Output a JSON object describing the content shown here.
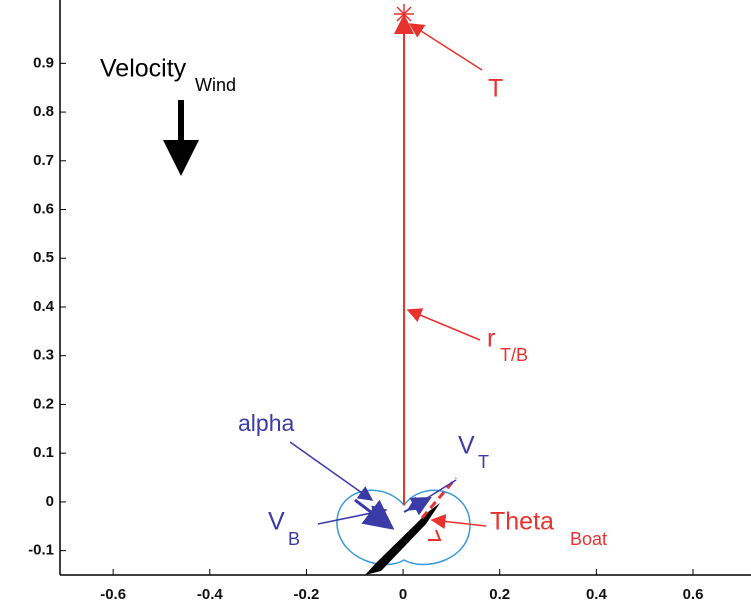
{
  "chart_data": {
    "type": "plot",
    "xlim": [
      -0.71,
      0.72
    ],
    "ylim": [
      -0.15,
      1.03
    ],
    "xticks": [
      -0.6,
      -0.4,
      -0.2,
      0,
      0.2,
      0.4,
      0.6
    ],
    "yticks": [
      -0.1,
      0,
      0.1,
      0.2,
      0.3,
      0.4,
      0.5,
      0.6,
      0.7,
      0.8,
      0.9
    ],
    "annotations": {
      "wind": {
        "text": "Velocity",
        "sub": "Wind"
      },
      "target": {
        "text": "T"
      },
      "r": {
        "text": "r",
        "sub": "T/B"
      },
      "alpha": {
        "text": "alpha"
      },
      "vt": {
        "text": "V",
        "sub": "T"
      },
      "vb": {
        "text": "V",
        "sub": "B"
      },
      "theta": {
        "text": "Theta",
        "sub": "Boat"
      }
    }
  }
}
